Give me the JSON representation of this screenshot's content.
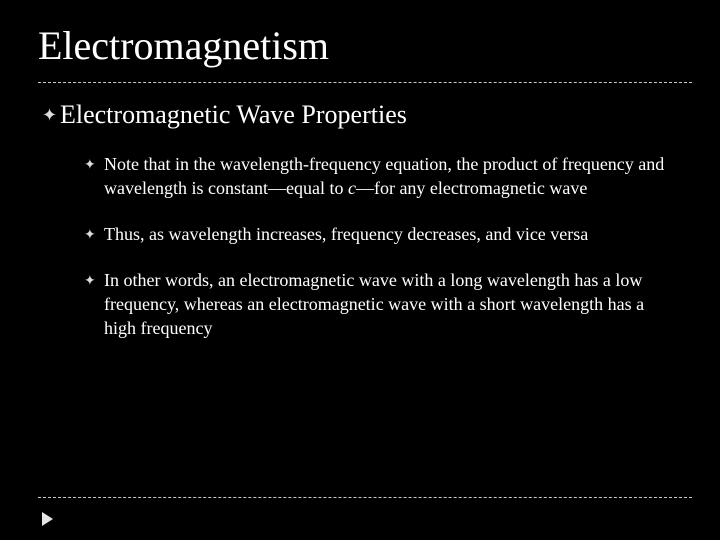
{
  "styling": {
    "background_color": "#000000",
    "text_color": "#ffffff",
    "divider_color": "#c9c9c9",
    "divider_style": "dashed",
    "bullet_color": "#dcdcdc",
    "arrow_color": "#e6e6e6",
    "font_family": "Times New Roman",
    "title_fontsize": 40,
    "subheading_fontsize": 26,
    "body_fontsize": 18,
    "slide_width": 720,
    "slide_height": 540
  },
  "title": "Electromagnetism",
  "subheading": "Electromagnetic Wave Properties",
  "bullets": {
    "b0": "Note that in the wavelength-frequency equation, the product of frequency and wavelength is constant—equal to ",
    "b0_ital": "c",
    "b0_tail": "—for any electromagnetic wave",
    "b1": "Thus, as wavelength increases, frequency decreases, and vice versa",
    "b2": "In other words, an electromagnetic wave with a long wavelength has a low frequency, whereas an electromagnetic wave with a short wavelength has a high frequency"
  },
  "bullet_glyph_main": "❧",
  "bullet_glyph_sub": "❧"
}
